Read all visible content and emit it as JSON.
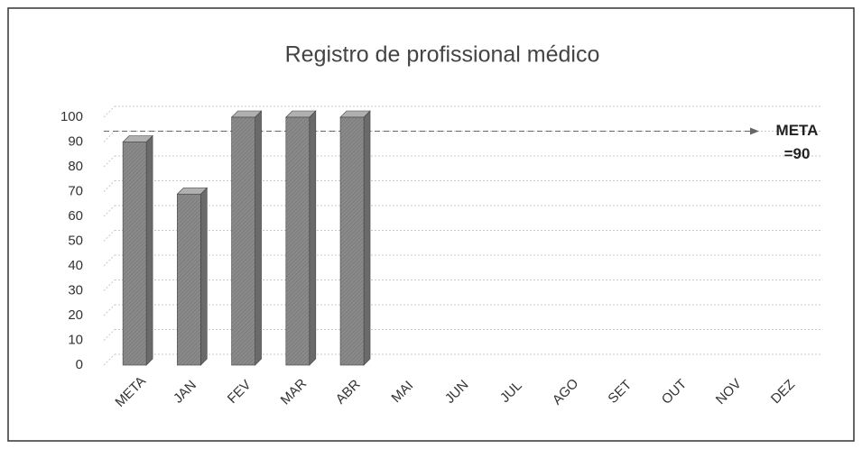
{
  "chart_data": {
    "type": "bar3d",
    "title": "Registro de profissional médico",
    "categories": [
      "META",
      "JAN",
      "FEV",
      "MAR",
      "ABR",
      "MAI",
      "JUN",
      "JUL",
      "AGO",
      "SET",
      "OUT",
      "NOV",
      "DEZ"
    ],
    "values": [
      90,
      69,
      100,
      100,
      100,
      null,
      null,
      null,
      null,
      null,
      null,
      null,
      null
    ],
    "color": "#8a8a8a",
    "ylim": [
      0,
      100
    ],
    "yticks": [
      0,
      10,
      20,
      30,
      40,
      50,
      60,
      70,
      80,
      90,
      100
    ],
    "grid": true,
    "annotation": {
      "label": [
        "META",
        "=90"
      ],
      "value": 90
    }
  }
}
